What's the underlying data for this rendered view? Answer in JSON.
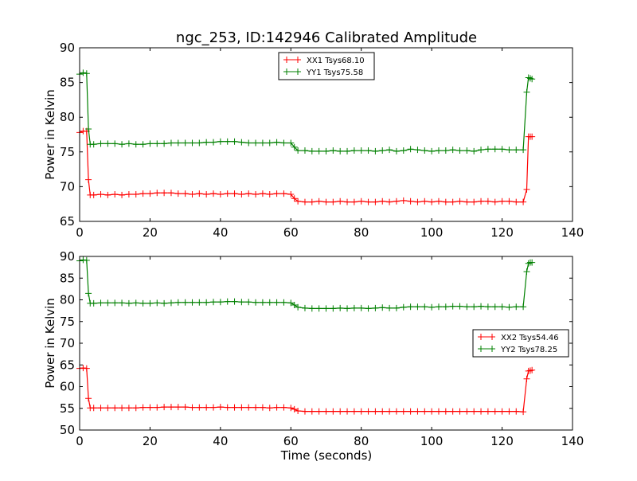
{
  "chart_data": [
    {
      "type": "line",
      "title": "ngc_253, ID:142946 Calibrated Amplitude",
      "xlabel": "",
      "ylabel": "Power in Kelvin",
      "xlim": [
        0,
        140
      ],
      "ylim": [
        65,
        90
      ],
      "xticks": [
        0,
        20,
        40,
        60,
        80,
        100,
        120,
        140
      ],
      "yticks": [
        65,
        70,
        75,
        80,
        85,
        90
      ],
      "legend": "top-center",
      "x": [
        0,
        1,
        2,
        2.5,
        3,
        4,
        6,
        8,
        10,
        12,
        14,
        16,
        18,
        20,
        22,
        24,
        26,
        28,
        30,
        32,
        34,
        36,
        38,
        40,
        42,
        44,
        46,
        48,
        50,
        52,
        54,
        56,
        58,
        60,
        61,
        62,
        64,
        66,
        68,
        70,
        72,
        74,
        76,
        78,
        80,
        82,
        84,
        86,
        88,
        90,
        92,
        94,
        96,
        98,
        100,
        102,
        104,
        106,
        108,
        110,
        112,
        114,
        116,
        118,
        120,
        122,
        124,
        126,
        127,
        127.5,
        128,
        128.5
      ],
      "series": [
        {
          "name": "XX1 Tsys68.10",
          "color": "#ff0000",
          "values": [
            77.8,
            78.0,
            78.0,
            71.0,
            68.8,
            68.8,
            68.9,
            68.8,
            68.9,
            68.8,
            68.9,
            68.9,
            69.0,
            69.0,
            69.1,
            69.1,
            69.1,
            69.0,
            69.0,
            68.9,
            69.0,
            68.9,
            69.0,
            68.9,
            69.0,
            69.0,
            68.9,
            69.0,
            68.9,
            69.0,
            68.9,
            69.0,
            69.0,
            68.9,
            68.3,
            67.9,
            67.8,
            67.8,
            67.9,
            67.8,
            67.8,
            67.9,
            67.8,
            67.8,
            67.9,
            67.8,
            67.8,
            67.9,
            67.8,
            67.9,
            68.0,
            67.9,
            67.8,
            67.9,
            67.8,
            67.9,
            67.8,
            67.8,
            67.9,
            67.8,
            67.8,
            67.9,
            67.9,
            67.8,
            67.9,
            67.9,
            67.8,
            67.8,
            69.6,
            77.2,
            77.2,
            77.2
          ]
        },
        {
          "name": "YY1 Tsys75.58",
          "color": "#008000",
          "values": [
            86.2,
            86.4,
            86.3,
            78.3,
            76.1,
            76.1,
            76.2,
            76.2,
            76.2,
            76.1,
            76.2,
            76.1,
            76.1,
            76.2,
            76.2,
            76.2,
            76.3,
            76.3,
            76.3,
            76.3,
            76.3,
            76.4,
            76.4,
            76.5,
            76.5,
            76.5,
            76.4,
            76.3,
            76.3,
            76.3,
            76.3,
            76.4,
            76.3,
            76.3,
            75.7,
            75.2,
            75.2,
            75.1,
            75.1,
            75.1,
            75.2,
            75.1,
            75.1,
            75.2,
            75.2,
            75.2,
            75.1,
            75.2,
            75.3,
            75.1,
            75.2,
            75.4,
            75.3,
            75.2,
            75.1,
            75.2,
            75.2,
            75.3,
            75.2,
            75.2,
            75.1,
            75.3,
            75.4,
            75.4,
            75.4,
            75.3,
            75.3,
            75.3,
            83.6,
            85.7,
            85.6,
            85.5
          ]
        }
      ]
    },
    {
      "type": "line",
      "title": "",
      "xlabel": "Time (seconds)",
      "ylabel": "Power in Kelvin",
      "xlim": [
        0,
        140
      ],
      "ylim": [
        50,
        90
      ],
      "xticks": [
        0,
        20,
        40,
        60,
        80,
        100,
        120,
        140
      ],
      "yticks": [
        50,
        55,
        60,
        65,
        70,
        75,
        80,
        85,
        90
      ],
      "legend": "center-right",
      "x": [
        0,
        1,
        2,
        2.5,
        3,
        4,
        6,
        8,
        10,
        12,
        14,
        16,
        18,
        20,
        22,
        24,
        26,
        28,
        30,
        32,
        34,
        36,
        38,
        40,
        42,
        44,
        46,
        48,
        50,
        52,
        54,
        56,
        58,
        60,
        61,
        62,
        64,
        66,
        68,
        70,
        72,
        74,
        76,
        78,
        80,
        82,
        84,
        86,
        88,
        90,
        92,
        94,
        96,
        98,
        100,
        102,
        104,
        106,
        108,
        110,
        112,
        114,
        116,
        118,
        120,
        122,
        124,
        126,
        127,
        127.5,
        128,
        128.5
      ],
      "series": [
        {
          "name": "XX2 Tsys54.46",
          "color": "#ff0000",
          "values": [
            64.2,
            64.3,
            64.2,
            57.3,
            55.1,
            55.1,
            55.1,
            55.1,
            55.1,
            55.1,
            55.1,
            55.1,
            55.2,
            55.2,
            55.2,
            55.3,
            55.3,
            55.3,
            55.3,
            55.2,
            55.2,
            55.2,
            55.2,
            55.3,
            55.2,
            55.2,
            55.2,
            55.2,
            55.2,
            55.2,
            55.1,
            55.2,
            55.2,
            55.1,
            54.8,
            54.4,
            54.3,
            54.3,
            54.3,
            54.3,
            54.3,
            54.3,
            54.3,
            54.3,
            54.3,
            54.3,
            54.3,
            54.3,
            54.3,
            54.3,
            54.3,
            54.3,
            54.3,
            54.3,
            54.3,
            54.3,
            54.3,
            54.3,
            54.3,
            54.3,
            54.3,
            54.3,
            54.3,
            54.3,
            54.3,
            54.3,
            54.3,
            54.2,
            61.8,
            63.6,
            63.7,
            63.8
          ]
        },
        {
          "name": "YY2 Tsys78.25",
          "color": "#008000",
          "values": [
            89.0,
            89.2,
            89.1,
            81.5,
            79.2,
            79.2,
            79.3,
            79.3,
            79.3,
            79.3,
            79.2,
            79.3,
            79.2,
            79.2,
            79.3,
            79.2,
            79.3,
            79.4,
            79.4,
            79.4,
            79.4,
            79.4,
            79.5,
            79.5,
            79.6,
            79.6,
            79.5,
            79.5,
            79.4,
            79.4,
            79.4,
            79.4,
            79.4,
            79.3,
            78.8,
            78.3,
            78.1,
            78.0,
            78.0,
            78.0,
            78.0,
            78.1,
            78.0,
            78.1,
            78.1,
            78.0,
            78.1,
            78.2,
            78.1,
            78.1,
            78.3,
            78.4,
            78.4,
            78.4,
            78.3,
            78.4,
            78.4,
            78.5,
            78.5,
            78.4,
            78.4,
            78.5,
            78.4,
            78.4,
            78.4,
            78.3,
            78.4,
            78.4,
            86.5,
            88.4,
            88.6,
            88.6
          ]
        }
      ]
    }
  ]
}
